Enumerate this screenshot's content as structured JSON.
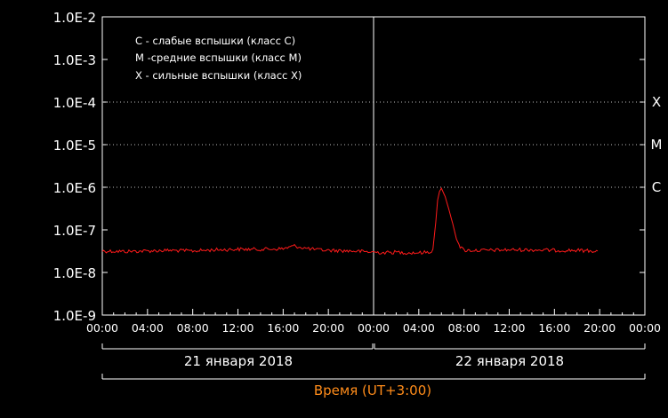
{
  "chart_data": {
    "type": "line",
    "title": "",
    "xlabel": "Время (UT+3:00)",
    "ylabel": "",
    "y_scale": "log",
    "ylim": [
      1e-09,
      0.01
    ],
    "y_ticks": [
      {
        "value": 1e-09,
        "label": "1.0E-9"
      },
      {
        "value": 1e-08,
        "label": "1.0E-8"
      },
      {
        "value": 1e-07,
        "label": "1.0E-7"
      },
      {
        "value": 1e-06,
        "label": "1.0E-6"
      },
      {
        "value": 1e-05,
        "label": "1.0E-5"
      },
      {
        "value": 0.0001,
        "label": "1.0E-4"
      },
      {
        "value": 0.001,
        "label": "1.0E-3"
      },
      {
        "value": 0.01,
        "label": "1.0E-2"
      }
    ],
    "xlim": [
      "2018-01-21 00:00",
      "2018-01-23 00:00"
    ],
    "x_ticks": [
      "00:00",
      "04:00",
      "08:00",
      "12:00",
      "16:00",
      "20:00",
      "00:00",
      "04:00",
      "08:00",
      "12:00",
      "16:00",
      "20:00",
      "00:00"
    ],
    "date_labels": [
      "21 января 2018",
      "22 января 2018"
    ],
    "class_thresholds": [
      {
        "value": 1e-06,
        "label": "C"
      },
      {
        "value": 1e-05,
        "label": "M"
      },
      {
        "value": 0.0001,
        "label": "X"
      }
    ],
    "legend_position": "top-left",
    "legend": [
      "C - слабые вспышки (класс C)",
      "M -средние вспышки (класс M)",
      "X - сильные вспышки (класс X)"
    ],
    "grid": false,
    "colors": {
      "series": "#ff1a1a",
      "axis": "#ffffff",
      "xlabel": "#ff8c1a"
    },
    "series": [
      {
        "x": [
          "2018-01-21 00:00",
          "2018-01-21 02:00",
          "2018-01-21 04:00",
          "2018-01-21 06:00",
          "2018-01-21 08:00",
          "2018-01-21 10:00",
          "2018-01-21 12:00",
          "2018-01-21 14:00",
          "2018-01-21 16:00",
          "2018-01-21 17:00",
          "2018-01-21 18:00",
          "2018-01-21 19:00",
          "2018-01-21 20:00",
          "2018-01-21 22:00",
          "2018-01-22 00:00",
          "2018-01-22 01:00",
          "2018-01-22 02:00",
          "2018-01-22 03:00",
          "2018-01-22 04:00",
          "2018-01-22 05:00",
          "2018-01-22 05:15",
          "2018-01-22 05:30",
          "2018-01-22 05:40",
          "2018-01-22 05:50",
          "2018-01-22 06:00",
          "2018-01-22 06:20",
          "2018-01-22 06:40",
          "2018-01-22 07:00",
          "2018-01-22 07:20",
          "2018-01-22 07:40",
          "2018-01-22 08:00",
          "2018-01-22 10:00",
          "2018-01-22 12:00",
          "2018-01-22 14:00",
          "2018-01-22 16:00",
          "2018-01-22 18:00",
          "2018-01-22 19:50"
        ],
        "y": [
          3.2e-08,
          3.1e-08,
          3.2e-08,
          3.3e-08,
          3.2e-08,
          3.4e-08,
          3.5e-08,
          3.5e-08,
          3.6e-08,
          4.2e-08,
          3.7e-08,
          3.4e-08,
          3.3e-08,
          3.2e-08,
          3e-08,
          2.9e-08,
          3e-08,
          2.9e-08,
          2.9e-08,
          3e-08,
          3.5e-08,
          1.5e-07,
          5e-07,
          8e-07,
          9.5e-07,
          6e-07,
          3e-07,
          1.4e-07,
          6e-08,
          4e-08,
          3.3e-08,
          3.3e-08,
          3.4e-08,
          3.4e-08,
          3.3e-08,
          3.3e-08,
          3.2e-08
        ]
      }
    ]
  }
}
